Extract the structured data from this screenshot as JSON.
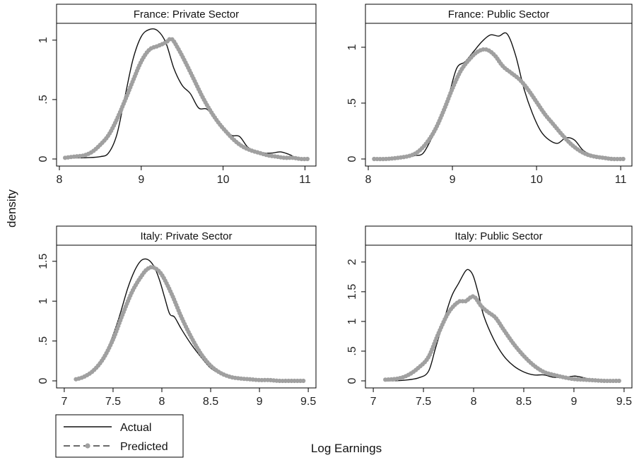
{
  "chart_data": [
    {
      "type": "line",
      "title": "France: Private Sector",
      "xlim": [
        8,
        11.1
      ],
      "ylim": [
        0,
        1.1
      ],
      "xticks": [
        8,
        9,
        10,
        11
      ],
      "xtick_labels": [
        "8",
        "9",
        "10",
        "11"
      ],
      "yticks": [
        0,
        0.5,
        1
      ],
      "ytick_labels": [
        "0",
        ".5",
        "1"
      ],
      "series": [
        {
          "name": "Actual",
          "x": [
            8.1,
            8.3,
            8.5,
            8.6,
            8.7,
            8.8,
            8.9,
            9.0,
            9.1,
            9.2,
            9.3,
            9.4,
            9.5,
            9.6,
            9.7,
            9.8,
            9.9,
            10.0,
            10.1,
            10.2,
            10.3,
            10.4,
            10.5,
            10.6,
            10.7,
            10.8,
            10.9,
            11.0
          ],
          "y": [
            0.01,
            0.01,
            0.02,
            0.05,
            0.2,
            0.52,
            0.84,
            1.03,
            1.09,
            1.08,
            0.98,
            0.76,
            0.62,
            0.55,
            0.43,
            0.42,
            0.35,
            0.27,
            0.2,
            0.19,
            0.1,
            0.06,
            0.05,
            0.05,
            0.06,
            0.04,
            0.01,
            0.0
          ]
        },
        {
          "name": "Predicted",
          "x": [
            8.07,
            8.18,
            8.3,
            8.4,
            8.5,
            8.6,
            8.7,
            8.8,
            8.9,
            9.0,
            9.1,
            9.2,
            9.3,
            9.37,
            9.45,
            9.55,
            9.65,
            9.75,
            9.85,
            9.95,
            10.05,
            10.15,
            10.25,
            10.35,
            10.45,
            10.55,
            10.65,
            10.75,
            10.85,
            10.95,
            11.03
          ],
          "y": [
            0.01,
            0.02,
            0.03,
            0.06,
            0.12,
            0.2,
            0.33,
            0.49,
            0.66,
            0.82,
            0.92,
            0.95,
            0.98,
            1.01,
            0.93,
            0.8,
            0.66,
            0.52,
            0.4,
            0.3,
            0.22,
            0.15,
            0.1,
            0.07,
            0.05,
            0.03,
            0.02,
            0.01,
            0.01,
            0.0,
            0.0
          ]
        }
      ]
    },
    {
      "type": "line",
      "title": "France: Public Sector",
      "xlim": [
        8,
        11.1
      ],
      "ylim": [
        0,
        1.17
      ],
      "xticks": [
        8,
        9,
        10,
        11
      ],
      "xtick_labels": [
        "8",
        "9",
        "10",
        "11"
      ],
      "yticks": [
        0,
        0.5,
        1
      ],
      "ytick_labels": [
        "0",
        ".5",
        "1"
      ],
      "series": [
        {
          "name": "Actual",
          "x": [
            8.1,
            8.4,
            8.55,
            8.65,
            8.75,
            8.85,
            8.95,
            9.05,
            9.15,
            9.25,
            9.35,
            9.45,
            9.55,
            9.65,
            9.75,
            9.85,
            9.95,
            10.05,
            10.15,
            10.25,
            10.35,
            10.45,
            10.55,
            10.65,
            10.8,
            11.0
          ],
          "y": [
            0.0,
            0.01,
            0.03,
            0.05,
            0.18,
            0.33,
            0.55,
            0.81,
            0.87,
            0.96,
            1.05,
            1.11,
            1.1,
            1.12,
            0.93,
            0.63,
            0.41,
            0.25,
            0.17,
            0.14,
            0.19,
            0.17,
            0.08,
            0.04,
            0.02,
            0.0
          ]
        },
        {
          "name": "Predicted",
          "x": [
            8.07,
            8.2,
            8.35,
            8.5,
            8.6,
            8.7,
            8.8,
            8.9,
            9.0,
            9.1,
            9.2,
            9.3,
            9.4,
            9.5,
            9.6,
            9.7,
            9.8,
            9.9,
            10.0,
            10.1,
            10.2,
            10.3,
            10.4,
            10.5,
            10.6,
            10.7,
            10.8,
            10.9,
            11.03
          ],
          "y": [
            0.0,
            0.0,
            0.01,
            0.03,
            0.07,
            0.15,
            0.27,
            0.44,
            0.63,
            0.79,
            0.89,
            0.96,
            0.98,
            0.93,
            0.83,
            0.77,
            0.71,
            0.62,
            0.51,
            0.4,
            0.31,
            0.22,
            0.14,
            0.08,
            0.04,
            0.02,
            0.01,
            0.0,
            0.0
          ]
        }
      ]
    },
    {
      "type": "line",
      "title": "Italy: Private Sector",
      "xlim": [
        6.95,
        9.55
      ],
      "ylim": [
        0,
        1.64
      ],
      "xticks": [
        7,
        7.5,
        8,
        8.5,
        9,
        9.5
      ],
      "xtick_labels": [
        "7",
        "7.5",
        "8",
        "8.5",
        "9",
        "9.5"
      ],
      "yticks": [
        0,
        0.5,
        1,
        1.5
      ],
      "ytick_labels": [
        "0",
        ".5",
        "1",
        "1.5"
      ],
      "series": [
        {
          "name": "Actual",
          "x": [
            7.12,
            7.25,
            7.35,
            7.45,
            7.55,
            7.65,
            7.72,
            7.78,
            7.83,
            7.88,
            7.93,
            7.98,
            8.03,
            8.08,
            8.13,
            8.2,
            8.3,
            8.4,
            8.5,
            8.6,
            8.7,
            8.8,
            8.9,
            9.0,
            9.2,
            9.45
          ],
          "y": [
            0.02,
            0.07,
            0.2,
            0.42,
            0.75,
            1.16,
            1.38,
            1.5,
            1.53,
            1.5,
            1.41,
            1.25,
            1.04,
            0.84,
            0.8,
            0.65,
            0.46,
            0.3,
            0.16,
            0.09,
            0.05,
            0.03,
            0.02,
            0.01,
            0.01,
            0.0
          ]
        },
        {
          "name": "Predicted",
          "x": [
            7.12,
            7.2,
            7.3,
            7.4,
            7.5,
            7.6,
            7.7,
            7.8,
            7.86,
            7.92,
            8.0,
            8.1,
            8.2,
            8.3,
            8.4,
            8.5,
            8.6,
            8.7,
            8.8,
            8.9,
            9.0,
            9.1,
            9.2,
            9.3,
            9.45
          ],
          "y": [
            0.02,
            0.05,
            0.13,
            0.28,
            0.52,
            0.84,
            1.13,
            1.33,
            1.41,
            1.42,
            1.33,
            1.09,
            0.8,
            0.55,
            0.34,
            0.19,
            0.1,
            0.05,
            0.03,
            0.02,
            0.01,
            0.01,
            0.0,
            0.0,
            0.0
          ]
        }
      ]
    },
    {
      "type": "line",
      "title": "Italy: Public Sector",
      "xlim": [
        6.95,
        9.55
      ],
      "ylim": [
        0,
        2.2
      ],
      "xticks": [
        7,
        7.5,
        8,
        8.5,
        9,
        9.5
      ],
      "xtick_labels": [
        "7",
        "7.5",
        "8",
        "8.5",
        "9",
        "9.5"
      ],
      "yticks": [
        0,
        0.5,
        1,
        1.5,
        2
      ],
      "ytick_labels": [
        "0",
        ".5",
        "1",
        "1.5",
        "2"
      ],
      "series": [
        {
          "name": "Actual",
          "x": [
            7.12,
            7.3,
            7.45,
            7.55,
            7.62,
            7.7,
            7.78,
            7.85,
            7.92,
            7.96,
            8.0,
            8.05,
            8.1,
            8.2,
            8.3,
            8.4,
            8.5,
            8.6,
            8.7,
            8.8,
            8.9,
            9.0,
            9.05,
            9.2,
            9.45
          ],
          "y": [
            0.0,
            0.01,
            0.05,
            0.16,
            0.55,
            1.0,
            1.42,
            1.64,
            1.85,
            1.86,
            1.75,
            1.45,
            1.1,
            0.7,
            0.42,
            0.25,
            0.15,
            0.1,
            0.1,
            0.06,
            0.06,
            0.08,
            0.07,
            0.02,
            0.0
          ]
        },
        {
          "name": "Predicted",
          "x": [
            7.12,
            7.25,
            7.35,
            7.45,
            7.55,
            7.65,
            7.75,
            7.85,
            7.92,
            8.0,
            8.08,
            8.15,
            8.22,
            8.3,
            8.4,
            8.5,
            8.6,
            8.7,
            8.8,
            8.9,
            9.0,
            9.1,
            9.2,
            9.3,
            9.45
          ],
          "y": [
            0.02,
            0.04,
            0.1,
            0.22,
            0.4,
            0.8,
            1.15,
            1.33,
            1.34,
            1.42,
            1.25,
            1.15,
            1.06,
            0.86,
            0.62,
            0.42,
            0.26,
            0.15,
            0.1,
            0.06,
            0.03,
            0.02,
            0.01,
            0.0,
            0.0
          ]
        }
      ]
    }
  ],
  "ylabel": "density",
  "xlabel": "Log Earnings",
  "legend": {
    "position": "bottom-left",
    "items": [
      "Actual",
      "Predicted"
    ]
  },
  "colors": {
    "actual": "#111111",
    "predicted": "#a9a9a9",
    "predicted_marker": "#a0a0a0",
    "axis": "#000000"
  }
}
